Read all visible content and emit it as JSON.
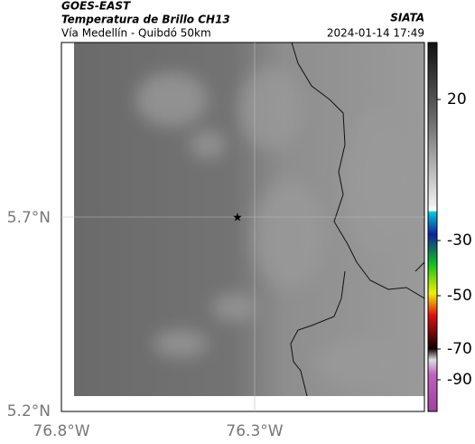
{
  "header": {
    "source": "GOES-EAST",
    "title": "Temperatura de Brillo CH13",
    "agency": "SIATA",
    "subtitle": "Vía Medellín - Quibdó 50km",
    "timestamp": "2024-01-14 17:49"
  },
  "map": {
    "lat_labels": [
      "5.7°N",
      "5.2°N"
    ],
    "lon_labels": [
      "76.8°W",
      "76.3°W"
    ]
  },
  "colorbar": {
    "tick_labels": [
      "20",
      "-30",
      "-50",
      "-70",
      "-90"
    ]
  }
}
